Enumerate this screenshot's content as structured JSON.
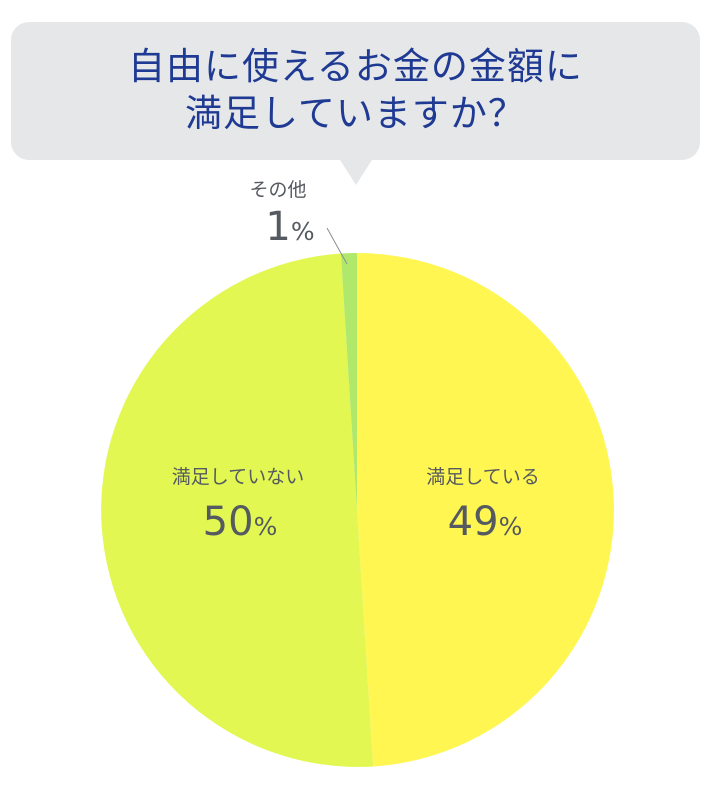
{
  "title_lines": [
    "自由に使えるお金の金額に",
    "満足していますか？"
  ],
  "colors": {
    "bubble": "#e6e7e9",
    "title": "#1f3a93",
    "label": "#555a60",
    "leader": "#8a8f94"
  },
  "chart_data": {
    "type": "pie",
    "title": "自由に使えるお金の金額に満足していますか？",
    "start": "12 o'clock, clockwise",
    "slices": [
      {
        "label": "満足している",
        "value": 49,
        "display_number": "49",
        "unit": "%",
        "color": "#fff652"
      },
      {
        "label": "満足していない",
        "value": 50,
        "display_number": "50",
        "unit": "%",
        "color": "#e2f752"
      },
      {
        "label": "その他",
        "value": 1,
        "display_number": "1",
        "unit": "%",
        "color": "#b0e86c"
      }
    ]
  }
}
